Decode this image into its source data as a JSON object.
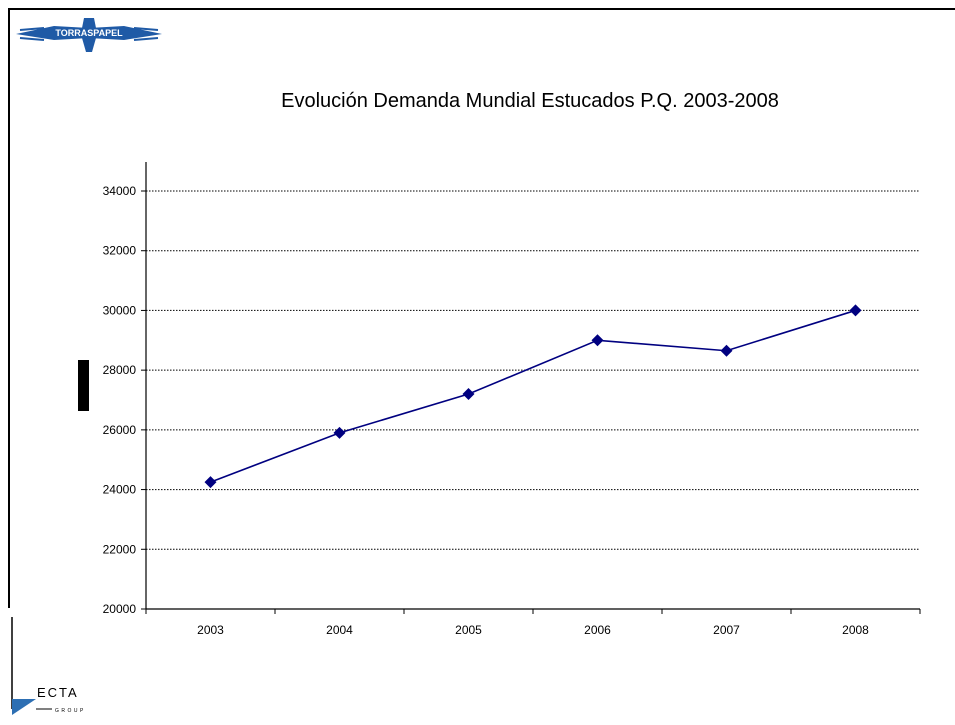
{
  "logo_top": {
    "text": "TORRASPAPEL",
    "color": "#1f5aa6"
  },
  "logo_bottom": {
    "text": "ECTA",
    "subtext": "GROUP",
    "accent": "#2d6fb3"
  },
  "chart_data": {
    "type": "line",
    "title": "Evolución Demanda Mundial Estucados P.Q. 2003-2008",
    "xlabel": "",
    "ylabel": "",
    "categories": [
      "2003",
      "2004",
      "2005",
      "2006",
      "2007",
      "2008"
    ],
    "series": [
      {
        "values": [
          24250,
          25900,
          27200,
          29000,
          28650,
          30000
        ],
        "color": "#000080"
      }
    ],
    "ylim": [
      20000,
      34000
    ],
    "yticks": [
      "20000",
      "22000",
      "24000",
      "26000",
      "28000",
      "30000",
      "32000",
      "34000"
    ],
    "grid": true,
    "marker": "diamond"
  }
}
